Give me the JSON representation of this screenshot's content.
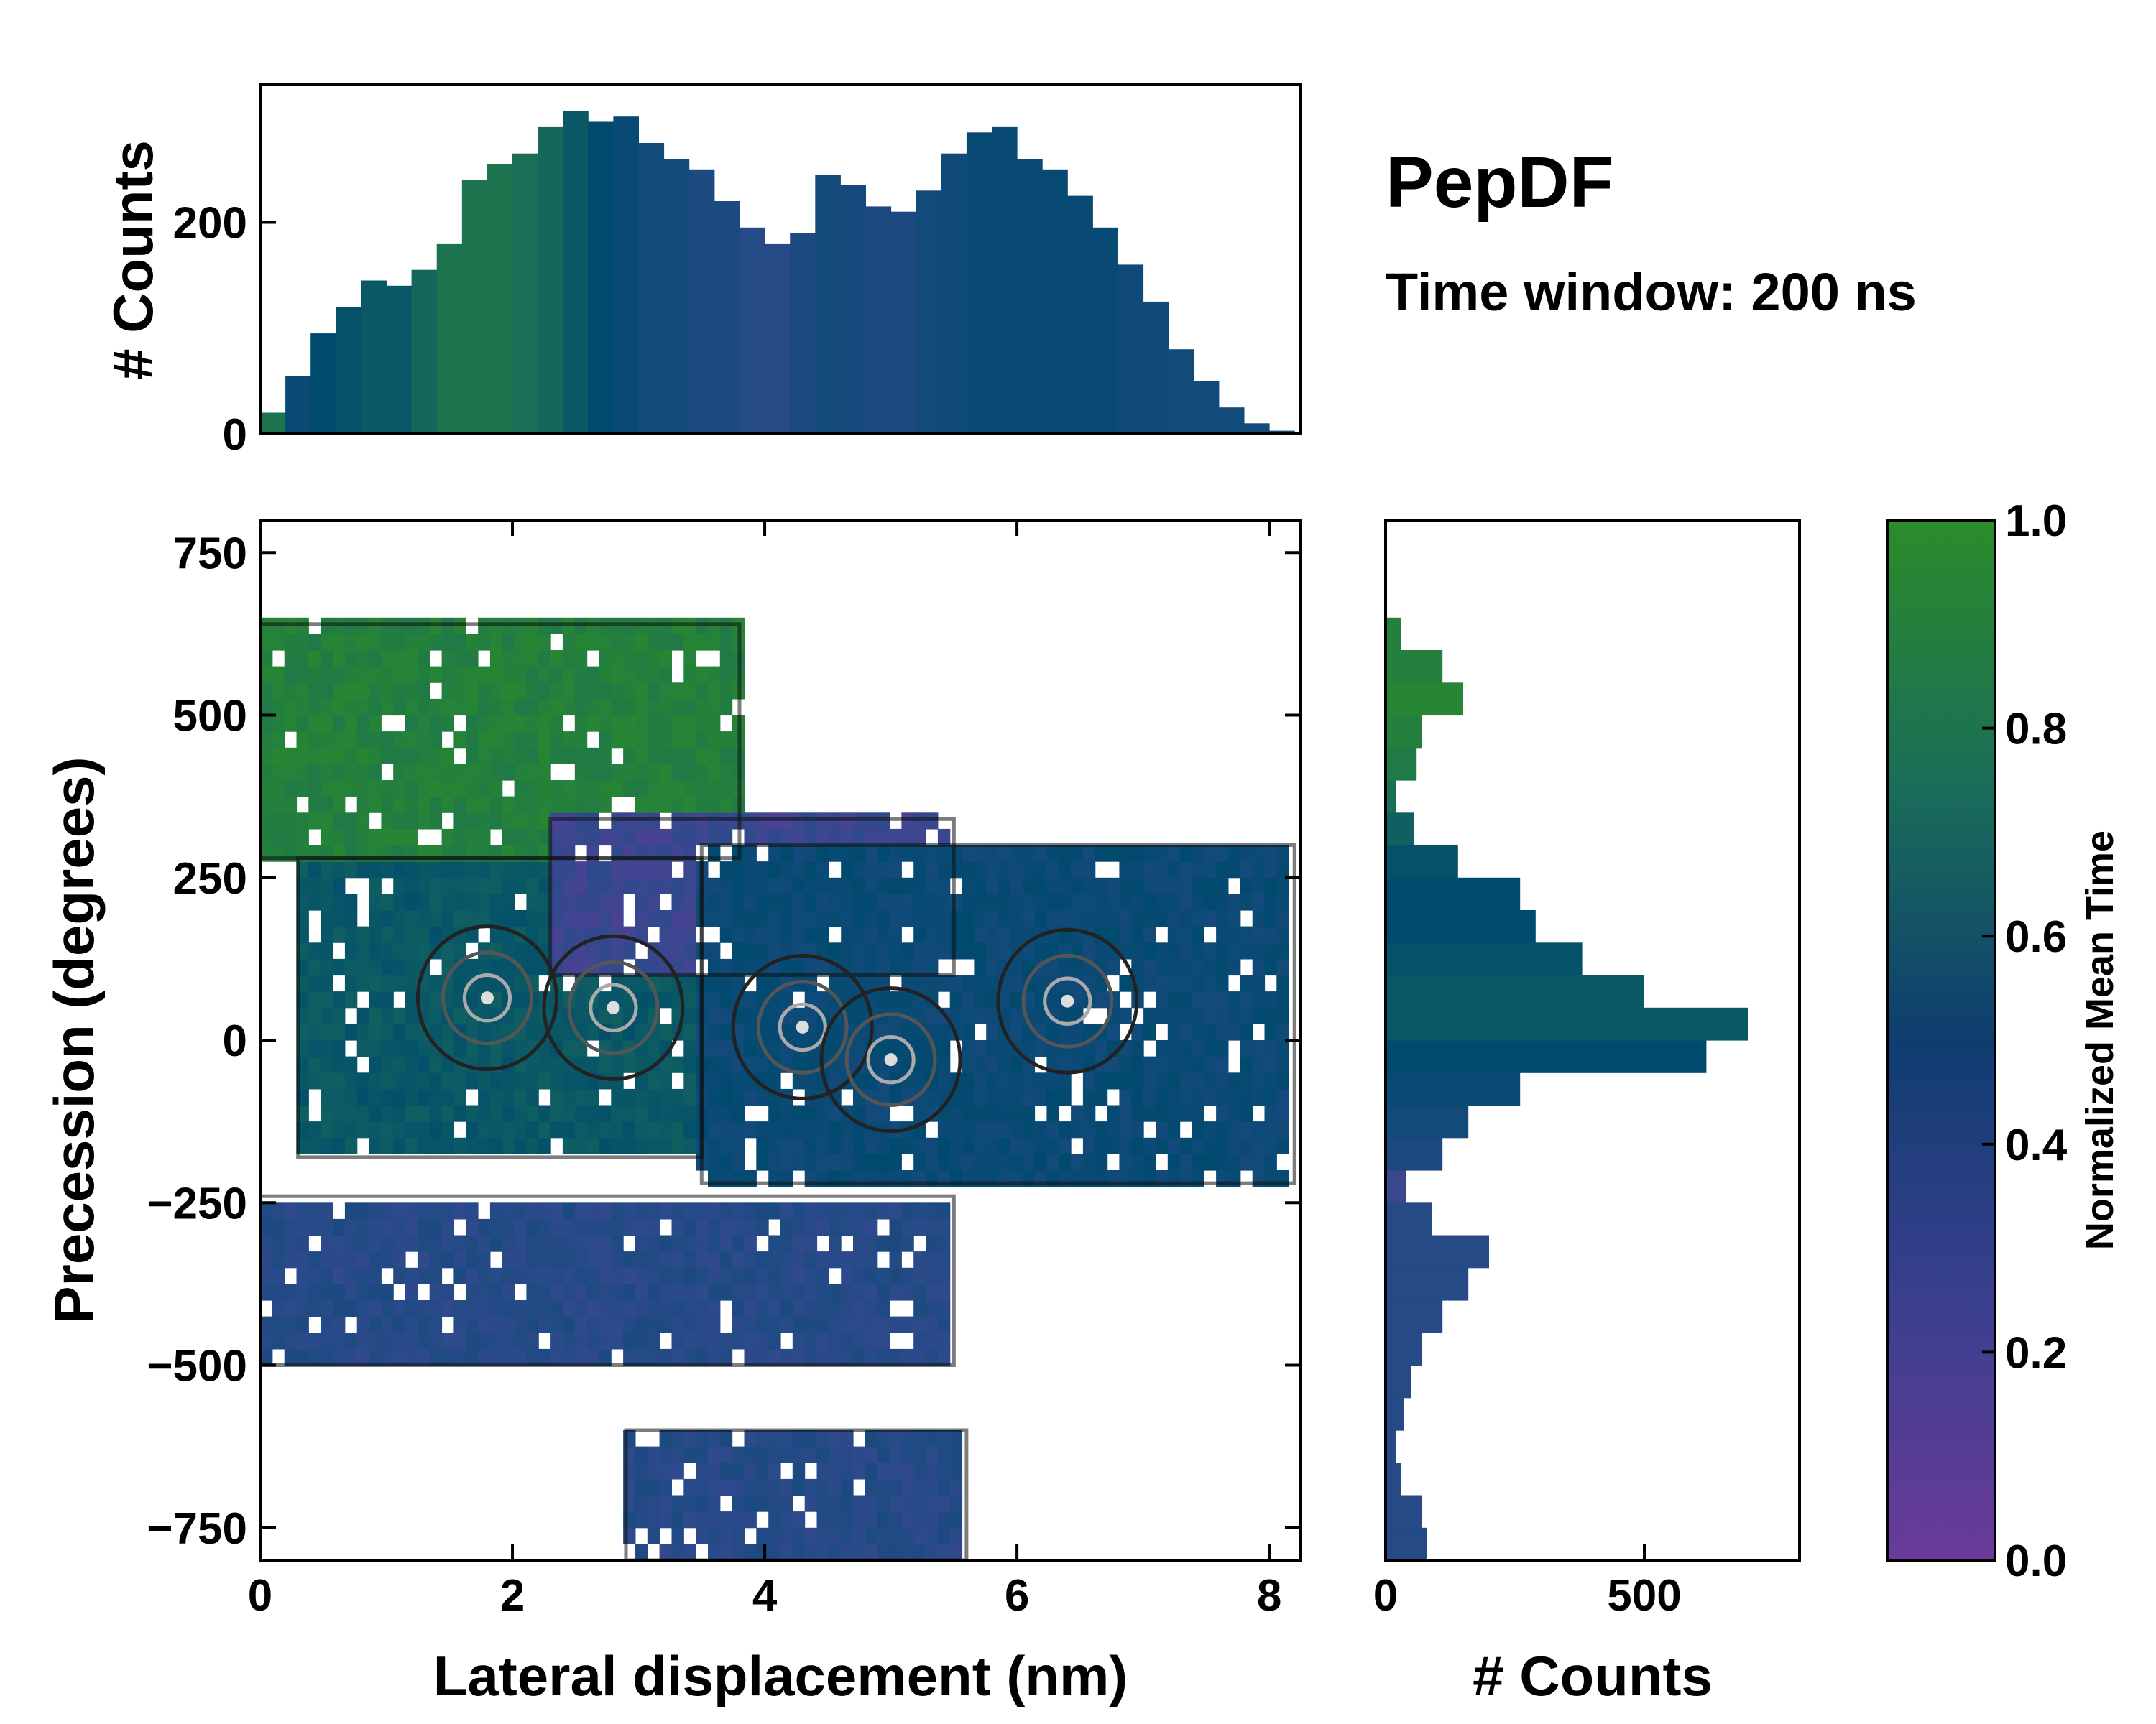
{
  "chart_data": [
    {
      "type": "heatmap",
      "panel": "main",
      "title": "PepDF",
      "subtitle": "Time window: 200 ns",
      "xlabel": "Lateral displacement (nm)",
      "ylabel": "Precession (degrees)",
      "xlim": [
        0,
        8.25
      ],
      "ylim": [
        -800,
        800
      ],
      "xticks": [
        0,
        2,
        4,
        6,
        8
      ],
      "yticks": [
        -750,
        -500,
        -250,
        0,
        250,
        500,
        750
      ],
      "xtick_labels": [
        "0",
        "2",
        "4",
        "6",
        "8"
      ],
      "ytick_labels": [
        "−750",
        "−500",
        "−250",
        "0",
        "250",
        "500",
        "750"
      ],
      "color_metric": "Normalized Mean Time",
      "regions": [
        {
          "name": "upper-green",
          "value": 0.9,
          "x": [
            0.0,
            3.8
          ],
          "y": [
            280,
            640
          ],
          "note": "color ~1.0"
        },
        {
          "name": "central-teal",
          "value": 0.6,
          "x": [
            0.3,
            3.5
          ],
          "y": [
            -180,
            280
          ]
        },
        {
          "name": "central-purple",
          "value": 0.2,
          "x": [
            2.3,
            5.5
          ],
          "y": [
            100,
            340
          ]
        },
        {
          "name": "central-blue",
          "value": 0.45,
          "x": [
            3.5,
            8.2
          ],
          "y": [
            -220,
            300
          ]
        },
        {
          "name": "lower-indigo",
          "value": 0.3,
          "x": [
            0.0,
            5.5
          ],
          "y": [
            -500,
            -240
          ]
        },
        {
          "name": "bottom-indigo",
          "value": 0.3,
          "x": [
            2.9,
            5.6
          ],
          "y": [
            -800,
            -600
          ]
        }
      ],
      "density_peaks": [
        {
          "x": 1.8,
          "y": 65
        },
        {
          "x": 2.8,
          "y": 50
        },
        {
          "x": 4.3,
          "y": 20
        },
        {
          "x": 5.0,
          "y": -30
        },
        {
          "x": 6.4,
          "y": 60
        }
      ]
    },
    {
      "type": "bar",
      "panel": "top-marginal",
      "ylabel": "# Counts",
      "xlim": [
        0,
        8.25
      ],
      "ylim": [
        0,
        330
      ],
      "yticks": [
        0,
        200
      ],
      "ytick_labels": [
        "0",
        "200"
      ],
      "x": [
        0.1,
        0.3,
        0.5,
        0.7,
        0.9,
        1.1,
        1.3,
        1.5,
        1.7,
        1.9,
        2.1,
        2.3,
        2.5,
        2.7,
        2.9,
        3.1,
        3.3,
        3.5,
        3.7,
        3.9,
        4.1,
        4.3,
        4.5,
        4.7,
        4.9,
        5.1,
        5.3,
        5.5,
        5.7,
        5.9,
        6.1,
        6.3,
        6.5,
        6.7,
        6.9,
        7.1,
        7.3,
        7.5,
        7.7,
        7.9,
        8.1
      ],
      "values": [
        20,
        55,
        95,
        120,
        145,
        140,
        155,
        180,
        240,
        255,
        265,
        290,
        305,
        295,
        300,
        275,
        260,
        250,
        220,
        195,
        180,
        190,
        245,
        235,
        215,
        210,
        230,
        265,
        285,
        290,
        260,
        250,
        225,
        195,
        160,
        125,
        80,
        50,
        25,
        10,
        3
      ],
      "color_values": [
        0.8,
        0.45,
        0.5,
        0.55,
        0.6,
        0.6,
        0.7,
        0.8,
        0.8,
        0.8,
        0.75,
        0.7,
        0.6,
        0.5,
        0.45,
        0.4,
        0.4,
        0.35,
        0.35,
        0.3,
        0.3,
        0.35,
        0.4,
        0.38,
        0.35,
        0.35,
        0.4,
        0.42,
        0.45,
        0.45,
        0.45,
        0.45,
        0.45,
        0.45,
        0.42,
        0.42,
        0.4,
        0.4,
        0.4,
        0.4,
        0.4
      ]
    },
    {
      "type": "bar",
      "orientation": "horizontal",
      "panel": "right-marginal",
      "xlabel": "# Counts",
      "xlim": [
        0,
        800
      ],
      "xticks": [
        0,
        500
      ],
      "xtick_labels": [
        "0",
        "500"
      ],
      "y": [
        -775,
        -725,
        -675,
        -625,
        -575,
        -525,
        -475,
        -425,
        -375,
        -325,
        -275,
        -225,
        -175,
        -125,
        -75,
        -25,
        25,
        75,
        125,
        175,
        225,
        275,
        325,
        375,
        425,
        475,
        525,
        575,
        625
      ],
      "values": [
        80,
        70,
        30,
        20,
        35,
        50,
        70,
        110,
        160,
        200,
        90,
        40,
        110,
        160,
        260,
        620,
        700,
        500,
        380,
        290,
        260,
        140,
        55,
        20,
        60,
        70,
        150,
        110,
        30
      ],
      "color_values": [
        0.3,
        0.3,
        0.3,
        0.3,
        0.3,
        0.3,
        0.3,
        0.3,
        0.3,
        0.3,
        0.3,
        0.2,
        0.35,
        0.4,
        0.45,
        0.5,
        0.6,
        0.6,
        0.55,
        0.5,
        0.5,
        0.55,
        0.65,
        0.75,
        0.85,
        0.9,
        0.95,
        0.9,
        0.9
      ]
    },
    {
      "type": "colorbar",
      "panel": "colorbar",
      "label": "Normalized Mean Time",
      "range": [
        0.0,
        1.0
      ],
      "ticks": [
        0.0,
        0.2,
        0.4,
        0.6,
        0.8,
        1.0
      ],
      "tick_labels": [
        "0.0",
        "0.2",
        "0.4",
        "0.6",
        "0.8",
        "1.0"
      ],
      "colors": [
        "#6a3a9a",
        "#2e4a8c",
        "#004a6e",
        "#1a6e58",
        "#2a8c2a"
      ]
    }
  ]
}
